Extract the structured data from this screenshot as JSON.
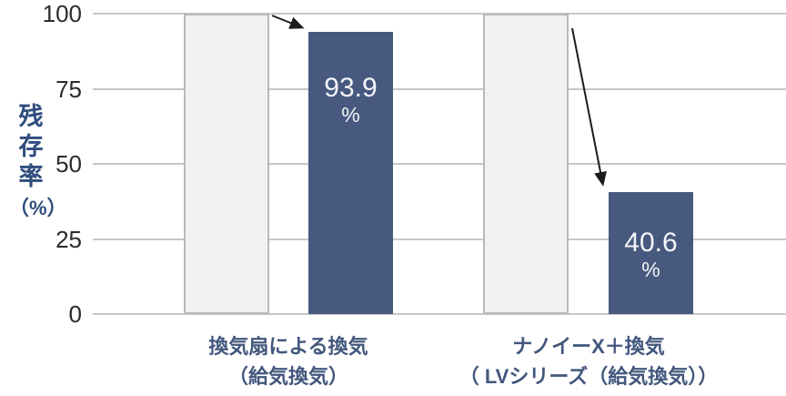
{
  "colors": {
    "background": "#ffffff",
    "result_bar": "#47597e",
    "reference_bar_fill": "#f1f1f1",
    "reference_bar_border": "#b9b9b9",
    "gridline": "#c7c7c7",
    "tick_text": "#2b2b2b",
    "axis_title_text": "#2f4d7d",
    "category_text": "#42577c",
    "value_text": "#f4f5f8",
    "arrow": "#1c1c1c"
  },
  "chart_data": {
    "type": "bar",
    "title": "",
    "ylabel": "残存率（%）",
    "y_axis_title": {
      "chars": [
        "残",
        "存",
        "率"
      ],
      "unit": "（%）"
    },
    "ylim": [
      0,
      100
    ],
    "yticks": [
      0,
      25,
      50,
      75,
      100
    ],
    "grid": true,
    "legend_position": "none",
    "categories": [
      [
        "換気扇による換気",
        "（給気換気）"
      ],
      [
        "ナノイーX＋換気",
        "（ LVシリーズ（給気換気））"
      ]
    ],
    "series": [
      {
        "name": "reference",
        "values": [
          100,
          100
        ]
      },
      {
        "name": "result",
        "values": [
          93.9,
          40.6
        ]
      }
    ],
    "bar_value_labels": [
      {
        "value": "93.9",
        "unit": "%"
      },
      {
        "value": "40.6",
        "unit": "%"
      }
    ],
    "annotations": [
      {
        "type": "arrow",
        "from": "top of 100% reference bar (group 1)",
        "to": "top of 93.9% result bar"
      },
      {
        "type": "arrow",
        "from": "top of 100% reference bar (group 2)",
        "to": "top of 40.6% result bar"
      }
    ]
  }
}
